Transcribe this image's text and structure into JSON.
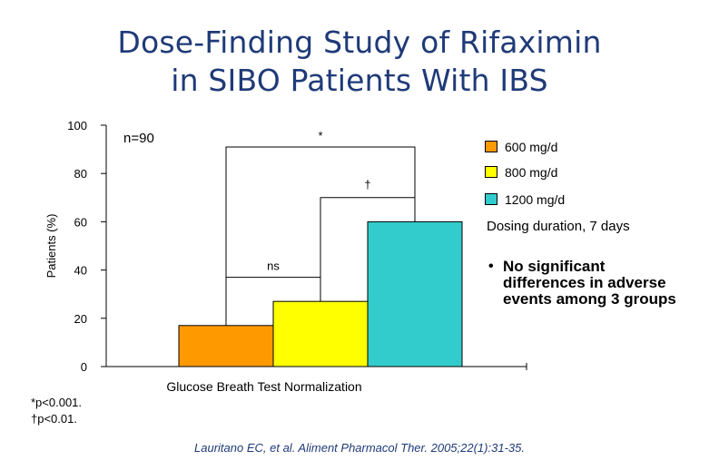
{
  "title": {
    "line1": "Dose-Finding Study of Rifaximin",
    "line2": "in SIBO Patients With IBS"
  },
  "colors": {
    "title": "#1f3a78",
    "bar_600": "#ff9900",
    "bar_800": "#ffff00",
    "bar_1200": "#33cccc"
  },
  "chart_data": {
    "type": "bar",
    "ylabel": "Patients (%)",
    "xlabel": "Glucose Breath Test Normalization",
    "ylim": [
      0,
      100
    ],
    "yticks": [
      "0",
      "20",
      "40",
      "60",
      "80",
      "100"
    ],
    "grid": false,
    "legend_position": "right",
    "series": [
      {
        "name": "600 mg/d",
        "value": 17,
        "color": "#ff9900"
      },
      {
        "name": "800 mg/d",
        "value": 27,
        "color": "#ffff00"
      },
      {
        "name": "1200 mg/d",
        "value": 60,
        "color": "#33cccc"
      }
    ],
    "annotations": {
      "n": "n=90",
      "comparisons": [
        {
          "from": "600 mg/d",
          "to": "1200 mg/d",
          "label": "*",
          "level": 91
        },
        {
          "from": "800 mg/d",
          "to": "1200 mg/d",
          "label": "†",
          "level": 70
        },
        {
          "from": "600 mg/d",
          "to": "800 mg/d",
          "label": "ns",
          "level": 37
        }
      ]
    }
  },
  "side_note": {
    "duration": "Dosing duration, 7 days",
    "bullet": "•",
    "point": "No significant differences in adverse events among 3 groups"
  },
  "footnotes": [
    "*p<0.001.",
    "†p<0.01."
  ],
  "citation": "Lauritano EC, et al. Aliment Pharmacol Ther. 2005;22(1):31-35."
}
